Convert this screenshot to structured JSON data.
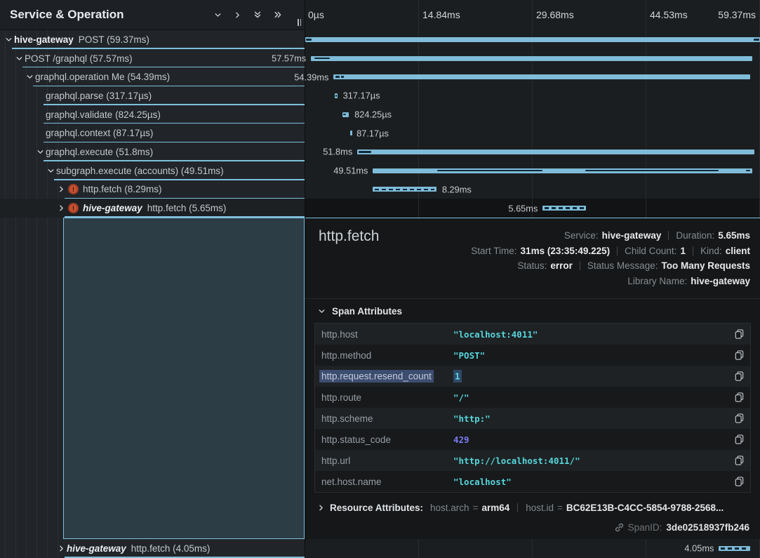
{
  "header": {
    "title": "Service & Operation",
    "icons": [
      {
        "name": "collapse-one-icon",
        "glyph": "down"
      },
      {
        "name": "expand-one-icon",
        "glyph": "right"
      },
      {
        "name": "collapse-all-icon",
        "glyph": "ddown"
      },
      {
        "name": "expand-all-icon",
        "glyph": "dright"
      }
    ]
  },
  "timeline": {
    "total_ms": 59.37,
    "ticks": [
      {
        "label": "0µs",
        "pct": 0
      },
      {
        "label": "14.84ms",
        "pct": 25
      },
      {
        "label": "29.68ms",
        "pct": 50
      },
      {
        "label": "44.53ms",
        "pct": 75
      },
      {
        "label": "59.37ms",
        "pct": 100
      }
    ]
  },
  "spans": [
    {
      "depth": 0,
      "chevron": "down",
      "error": false,
      "service": "hive-gateway",
      "italic": false,
      "label": "POST (59.37ms)",
      "start_ms": 0,
      "duration_ms": 59.37,
      "bar_label": "",
      "label_side": "none",
      "dashed": false,
      "segments": [
        [
          0.05,
          0.85
        ],
        [
          58.5,
          59.32
        ]
      ],
      "selected": false,
      "below_detail": false
    },
    {
      "depth": 1,
      "chevron": "down",
      "error": false,
      "service": null,
      "italic": false,
      "label": "POST /graphql (57.57ms)",
      "start_ms": 0.75,
      "duration_ms": 57.57,
      "bar_label": "57.57ms",
      "label_side": "left",
      "dashed": false,
      "segments": [
        [
          1.2,
          3.2
        ]
      ],
      "selected": false,
      "below_detail": false
    },
    {
      "depth": 2,
      "chevron": "down",
      "error": false,
      "service": null,
      "italic": false,
      "label": "graphql.operation Me (54.39ms)",
      "start_ms": 3.7,
      "duration_ms": 54.39,
      "bar_label": "54.39ms",
      "label_side": "left",
      "dashed": false,
      "segments": [
        [
          3.95,
          4.45
        ],
        [
          4.65,
          5.0
        ]
      ],
      "selected": false,
      "below_detail": false
    },
    {
      "depth": 3,
      "chevron": null,
      "error": false,
      "service": null,
      "italic": false,
      "label": "graphql.parse (317.17µs)",
      "start_ms": 3.86,
      "duration_ms": 0.31717,
      "bar_label": "317.17µs",
      "label_side": "right",
      "dashed": false,
      "segments": [
        [
          3.9,
          4.05
        ]
      ],
      "selected": false,
      "below_detail": false
    },
    {
      "depth": 3,
      "chevron": null,
      "error": false,
      "service": null,
      "italic": false,
      "label": "graphql.validate (824.25µs)",
      "start_ms": 4.87,
      "duration_ms": 0.82425,
      "bar_label": "824.25µs",
      "label_side": "right",
      "dashed": false,
      "segments": [
        [
          4.95,
          5.3
        ]
      ],
      "selected": false,
      "below_detail": false
    },
    {
      "depth": 3,
      "chevron": null,
      "error": false,
      "service": null,
      "italic": false,
      "label": "graphql.context (87.17µs)",
      "start_ms": 5.88,
      "duration_ms": 0.08717,
      "bar_label": "87.17µs",
      "label_side": "right",
      "dashed": false,
      "segments": [],
      "selected": false,
      "below_detail": false
    },
    {
      "depth": 3,
      "chevron": "down",
      "error": false,
      "service": null,
      "italic": false,
      "label": "graphql.execute (51.8ms)",
      "start_ms": 6.8,
      "duration_ms": 51.8,
      "bar_label": "51.8ms",
      "label_side": "left",
      "dashed": false,
      "segments": [
        [
          7.0,
          8.6
        ]
      ],
      "selected": false,
      "below_detail": false
    },
    {
      "depth": 4,
      "chevron": "down",
      "error": false,
      "service": null,
      "italic": false,
      "label": "subgraph.execute (accounts) (49.51ms)",
      "start_ms": 8.83,
      "duration_ms": 49.51,
      "bar_label": "49.51ms",
      "label_side": "left",
      "dashed": false,
      "segments": [
        [
          17.2,
          31.0
        ],
        [
          36.6,
          54.0
        ],
        [
          57.5,
          58.1
        ]
      ],
      "selected": false,
      "below_detail": false
    },
    {
      "depth": 5,
      "chevron": "right",
      "error": true,
      "service": null,
      "italic": false,
      "label": "http.fetch (8.29ms)",
      "start_ms": 8.83,
      "duration_ms": 8.29,
      "bar_label": "8.29ms",
      "label_side": "right",
      "dashed": true,
      "segments": [],
      "selected": false,
      "below_detail": false
    },
    {
      "depth": 5,
      "chevron": "right",
      "error": true,
      "service": "hive-gateway",
      "italic": true,
      "label": "http.fetch (5.65ms)",
      "start_ms": 31.0,
      "duration_ms": 5.65,
      "bar_label": "5.65ms",
      "label_side": "left",
      "dashed": true,
      "segments": [],
      "selected": true,
      "below_detail": false
    },
    {
      "depth": 5,
      "chevron": "right",
      "error": false,
      "service": "hive-gateway",
      "italic": true,
      "label": "http.fetch (4.05ms)",
      "start_ms": 54.0,
      "duration_ms": 4.05,
      "bar_label": "4.05ms",
      "label_side": "left",
      "dashed": true,
      "segments": [],
      "selected": false,
      "below_detail": true
    }
  ],
  "detail": {
    "title": "http.fetch",
    "meta_lines": [
      [
        {
          "label": "Service:",
          "value": "hive-gateway"
        },
        {
          "label": "Duration:",
          "value": "5.65ms"
        }
      ],
      [
        {
          "label": "Start Time:",
          "value": "31ms (23:35:49.225)"
        },
        {
          "label": "Child Count:",
          "value": "1"
        },
        {
          "label": "Kind:",
          "value": "client"
        }
      ],
      [
        {
          "label": "Status:",
          "value": "error"
        },
        {
          "label": "Status Message:",
          "value": "Too Many Requests"
        }
      ],
      [
        {
          "label": "Library Name:",
          "value": "hive-gateway"
        }
      ]
    ],
    "span_attributes": {
      "title": "Span Attributes",
      "rows": [
        {
          "key": "http.host",
          "value": "\"localhost:4011\"",
          "type": "string",
          "key_selected": false,
          "value_selected": false
        },
        {
          "key": "http.method",
          "value": "\"POST\"",
          "type": "string",
          "key_selected": false,
          "value_selected": false
        },
        {
          "key": "http.request.resend_count",
          "value": "1",
          "type": "number",
          "key_selected": true,
          "value_selected": true
        },
        {
          "key": "http.route",
          "value": "\"/\"",
          "type": "string",
          "key_selected": false,
          "value_selected": false
        },
        {
          "key": "http.scheme",
          "value": "\"http:\"",
          "type": "string",
          "key_selected": false,
          "value_selected": false
        },
        {
          "key": "http.status_code",
          "value": "429",
          "type": "number",
          "key_selected": false,
          "value_selected": false
        },
        {
          "key": "http.url",
          "value": "\"http://localhost:4011/\"",
          "type": "string",
          "key_selected": false,
          "value_selected": false
        },
        {
          "key": "net.host.name",
          "value": "\"localhost\"",
          "type": "string",
          "key_selected": false,
          "value_selected": false
        }
      ]
    },
    "resource_attributes": {
      "title": "Resource Attributes:",
      "items": [
        {
          "key": "host.arch",
          "value": "arm64"
        },
        {
          "key": "host.id",
          "value": "BC62E13B-C4CC-5854-9788-2568..."
        }
      ]
    },
    "footer": {
      "label": "SpanID:",
      "value": "3de02518937fb246"
    }
  },
  "colors": {
    "bar": "#7fbcd9",
    "bar_mark": "#0e2a38",
    "row_underline": "#7ebfdc",
    "error_badge": "#c5512f",
    "string_value": "#55d6db",
    "number_value": "#7b7bf3",
    "selection": "#3d4d70",
    "expanded_panel": "#2c3d46"
  }
}
